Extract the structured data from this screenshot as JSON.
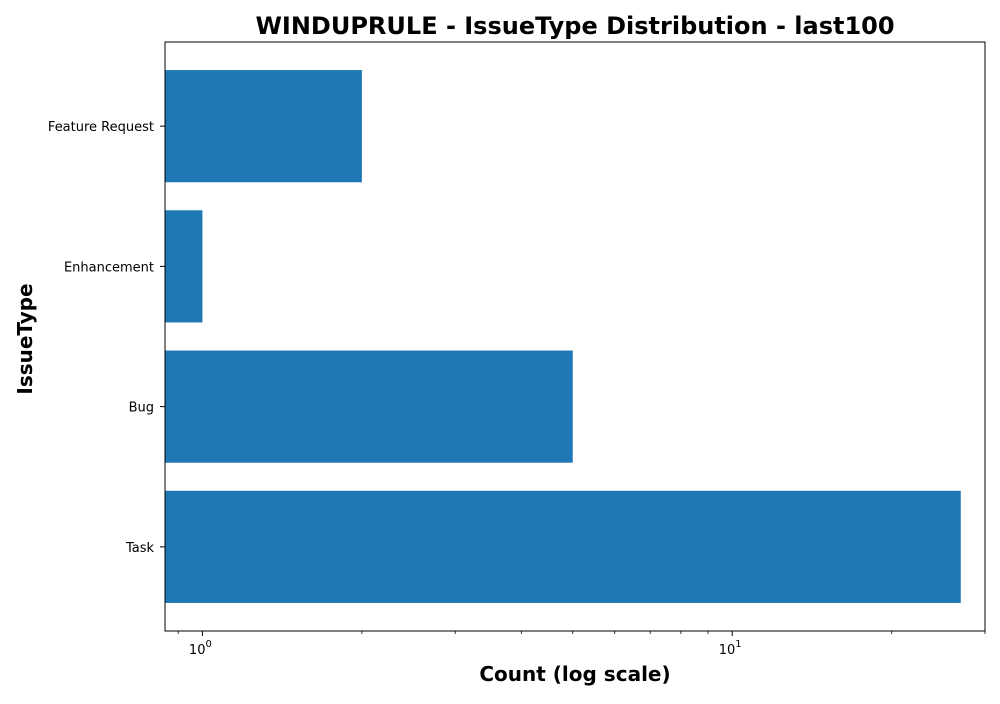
{
  "chart_data": {
    "type": "bar",
    "orientation": "horizontal",
    "title": "WINDUPRULE - IssueType Distribution - last100",
    "xlabel": "Count (log scale)",
    "ylabel": "IssueType",
    "xscale": "log",
    "xlim": [
      0.85,
      30
    ],
    "x_major_ticks": [
      1,
      10
    ],
    "x_tick_labels": [
      "10",
      "10"
    ],
    "x_tick_exponents": [
      "0",
      "1"
    ],
    "categories": [
      "Task",
      "Bug",
      "Enhancement",
      "Feature Request"
    ],
    "values": [
      27,
      5,
      1,
      2
    ],
    "bar_color": "#1f77b4",
    "grid": false,
    "legend": "none"
  }
}
